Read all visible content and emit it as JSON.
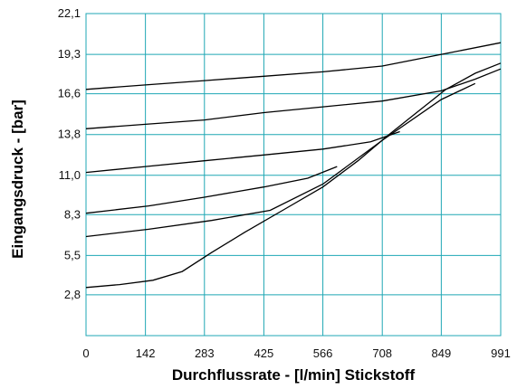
{
  "chart_data": {
    "type": "line",
    "title": "",
    "xlabel": "Durchflussrate - [l/min] Stickstoff",
    "ylabel": "Eingangsdruck - [bar]",
    "xlim": [
      0,
      991
    ],
    "ylim": [
      0,
      22.1
    ],
    "x_ticks": [
      "0",
      "142",
      "283",
      "425",
      "566",
      "708",
      "849",
      "991"
    ],
    "y_ticks": [
      "2,8",
      "5,5",
      "8,3",
      "11,0",
      "13,8",
      "16,6",
      "19,3",
      "22,1"
    ],
    "x_tick_values": [
      0,
      142,
      283,
      425,
      566,
      708,
      849,
      991
    ],
    "y_tick_values": [
      2.8,
      5.5,
      8.3,
      11.0,
      13.8,
      16.6,
      19.3,
      22.1
    ],
    "grid": true,
    "colors": {
      "grid": "#1fa7b4",
      "lines": "#000000"
    },
    "series": [
      {
        "points": [
          [
            0,
            3.3
          ],
          [
            80,
            3.5
          ],
          [
            160,
            3.8
          ],
          [
            230,
            4.4
          ],
          [
            300,
            5.7
          ],
          [
            380,
            7.1
          ],
          [
            470,
            8.6
          ],
          [
            566,
            10.2
          ],
          [
            650,
            12.0
          ],
          [
            720,
            13.7
          ],
          [
            790,
            15.3
          ],
          [
            860,
            16.9
          ],
          [
            930,
            18.0
          ],
          [
            991,
            18.7
          ]
        ]
      },
      {
        "points": [
          [
            0,
            6.8
          ],
          [
            150,
            7.3
          ],
          [
            300,
            7.9
          ],
          [
            440,
            8.6
          ],
          [
            566,
            10.4
          ],
          [
            708,
            13.4
          ],
          [
            849,
            16.2
          ],
          [
            930,
            17.3
          ]
        ]
      },
      {
        "points": [
          [
            0,
            8.4
          ],
          [
            150,
            8.9
          ],
          [
            283,
            9.5
          ],
          [
            425,
            10.2
          ],
          [
            530,
            10.8
          ],
          [
            600,
            11.6
          ]
        ]
      },
      {
        "points": [
          [
            0,
            11.2
          ],
          [
            142,
            11.6
          ],
          [
            283,
            12.0
          ],
          [
            425,
            12.4
          ],
          [
            566,
            12.8
          ],
          [
            680,
            13.3
          ],
          [
            750,
            14.0
          ]
        ]
      },
      {
        "points": [
          [
            0,
            14.2
          ],
          [
            142,
            14.5
          ],
          [
            283,
            14.8
          ],
          [
            425,
            15.3
          ],
          [
            566,
            15.7
          ],
          [
            708,
            16.1
          ],
          [
            849,
            16.8
          ],
          [
            930,
            17.6
          ],
          [
            991,
            18.3
          ]
        ]
      },
      {
        "points": [
          [
            0,
            16.9
          ],
          [
            142,
            17.2
          ],
          [
            283,
            17.5
          ],
          [
            425,
            17.8
          ],
          [
            566,
            18.1
          ],
          [
            708,
            18.5
          ],
          [
            849,
            19.3
          ],
          [
            991,
            20.1
          ]
        ]
      }
    ]
  }
}
